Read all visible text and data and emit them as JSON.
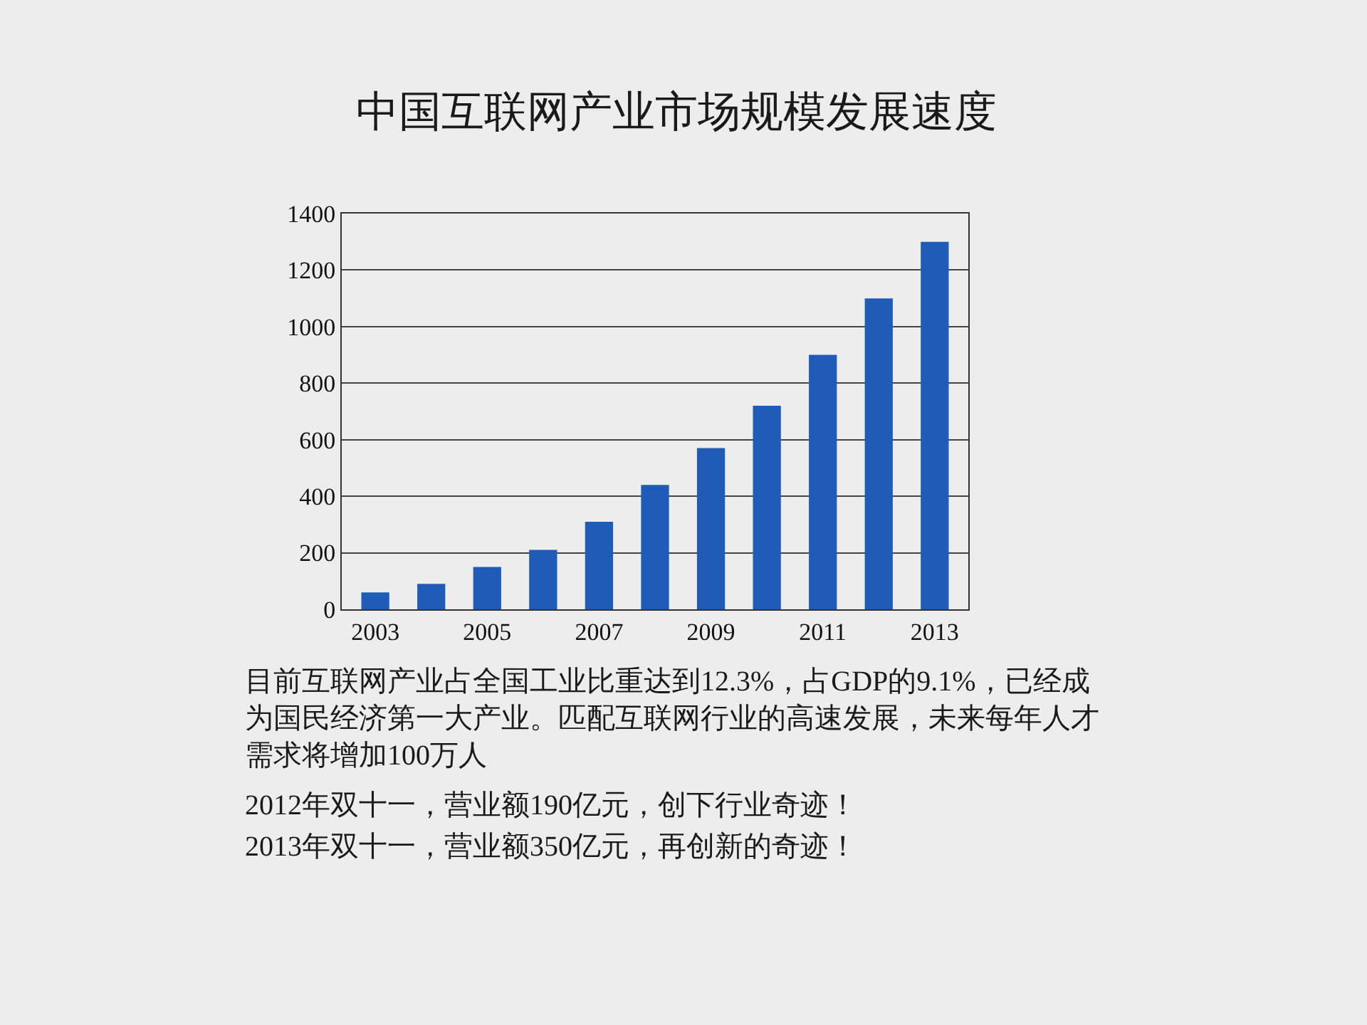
{
  "chart_data": {
    "type": "bar",
    "title": "中国互联网产业市场规模发展速度",
    "categories": [
      "2003",
      null,
      "2005",
      null,
      "2007",
      null,
      "2009",
      null,
      "2011",
      null,
      "2013"
    ],
    "values": [
      60,
      90,
      150,
      210,
      310,
      440,
      570,
      720,
      900,
      1100,
      1300
    ],
    "color": "#1f5cb8",
    "ylim": [
      0,
      1400
    ],
    "yticks": [
      0,
      200,
      400,
      600,
      800,
      1000,
      1200,
      1400
    ],
    "grid": "y",
    "annotations": [
      "目前互联网产业占全国工业比重达到12.3%，占GDP的9.1%，已经成为国民经济第一大产业。匹配互联网行业的高速发展，未来每年人才需求将增加100万人",
      "2012年双十一，营业额190亿元，创下行业奇迹！",
      "2013年双十一，营业额350亿元，再创新的奇迹！"
    ]
  }
}
